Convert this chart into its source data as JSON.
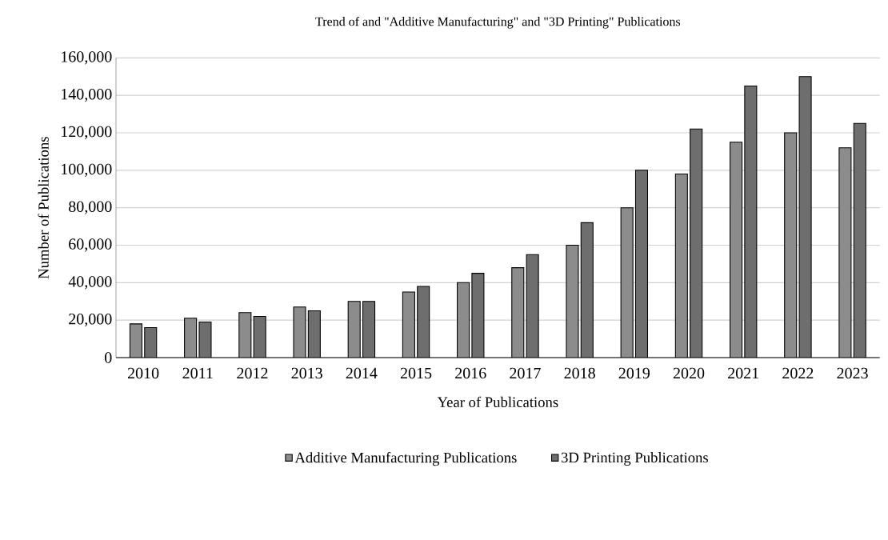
{
  "chart_data": {
    "type": "bar",
    "title": "Trend of and \"Additive Manufacturing\" and \"3D Printing\" Publications",
    "xlabel": "Year of Publications",
    "ylabel": "Number of Publications",
    "categories": [
      "2010",
      "2011",
      "2012",
      "2013",
      "2014",
      "2015",
      "2016",
      "2017",
      "2018",
      "2019",
      "2020",
      "2021",
      "2022",
      "2023"
    ],
    "series": [
      {
        "name": "Additive Manufacturing Publications",
        "color": "#8c8c8c",
        "values": [
          18000,
          21000,
          24000,
          27000,
          30000,
          35000,
          40000,
          48000,
          60000,
          80000,
          98000,
          115000,
          120000,
          112000
        ]
      },
      {
        "name": "3D Printing Publications",
        "color": "#6e6e6e",
        "values": [
          16000,
          19000,
          22000,
          25000,
          30000,
          38000,
          45000,
          55000,
          72000,
          100000,
          122000,
          145000,
          150000,
          125000
        ]
      }
    ],
    "ylim": [
      0,
      160000
    ],
    "yticks": [
      0,
      {
        "value": 20000,
        "label": "20,000"
      },
      {
        "value": 40000,
        "label": "40,000"
      },
      {
        "value": 60000,
        "label": "60,000"
      },
      {
        "value": 80000,
        "label": "80,000"
      },
      {
        "value": 100000,
        "label": "100,000"
      },
      {
        "value": 120000,
        "label": "120,000"
      },
      {
        "value": 140000,
        "label": "140,000"
      },
      {
        "value": 160000,
        "label": "160,000"
      }
    ],
    "grid": "y",
    "legend": "bottom"
  }
}
